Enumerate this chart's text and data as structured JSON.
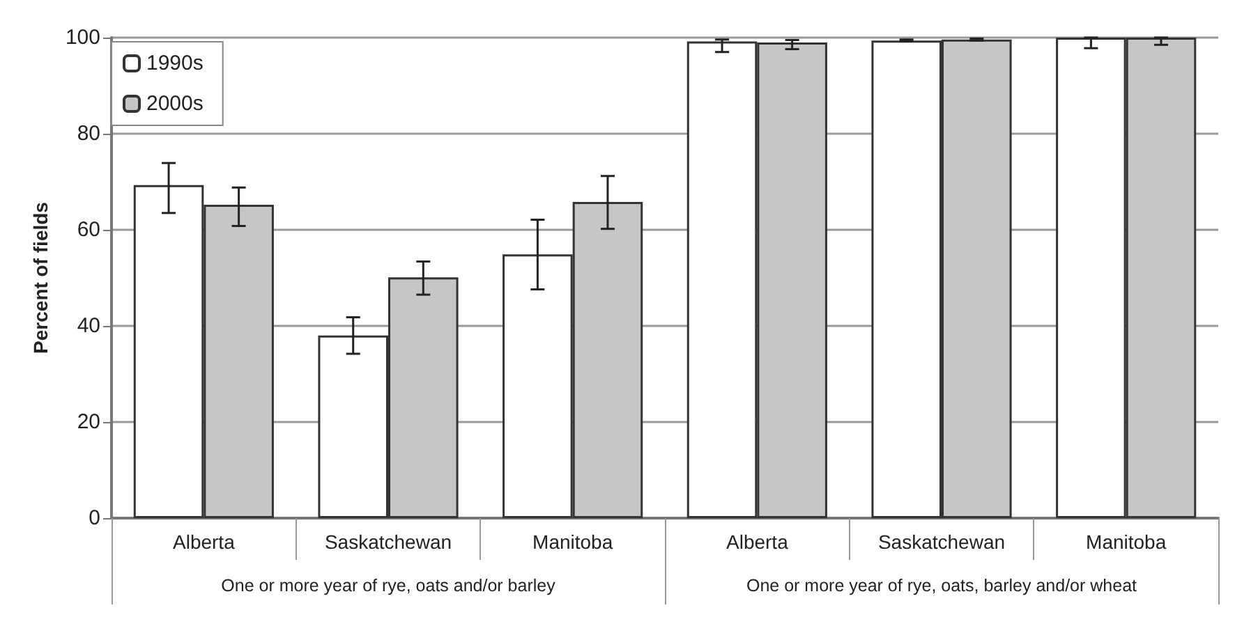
{
  "chart_data": {
    "type": "bar",
    "ylabel": "Percent of fields",
    "categories": [
      "Alberta",
      "Saskatchewan",
      "Manitoba",
      "Alberta",
      "Saskatchewan",
      "Manitoba"
    ],
    "annotations": [
      "One or more year of rye, oats and/or barley",
      "One or more year of rye, oats, barley and/or wheat"
    ],
    "series": [
      {
        "name": "1990s",
        "color": "#ffffff",
        "values": [
          69.3,
          38.0,
          54.9,
          99.2,
          99.4,
          100
        ],
        "errors": [
          [
            63.5,
            73.9
          ],
          [
            34.2,
            41.8
          ],
          [
            47.6,
            62.1
          ],
          [
            97.0,
            99.6
          ],
          [
            99.2,
            99.6
          ],
          [
            97.8,
            100
          ]
        ]
      },
      {
        "name": "2000s",
        "color": "#c4c6c8",
        "values": [
          65.2,
          50.1,
          65.8,
          99.0,
          99.6,
          100
        ],
        "errors": [
          [
            60.8,
            68.8
          ],
          [
            46.5,
            53.4
          ],
          [
            60.2,
            71.2
          ],
          [
            97.6,
            99.5
          ],
          [
            99.4,
            99.8
          ],
          [
            98.5,
            100
          ]
        ]
      }
    ],
    "ylim": [
      0,
      100
    ],
    "yticks": [
      0,
      20,
      40,
      60,
      80,
      100
    ],
    "grid": "y",
    "legend": "top left"
  }
}
